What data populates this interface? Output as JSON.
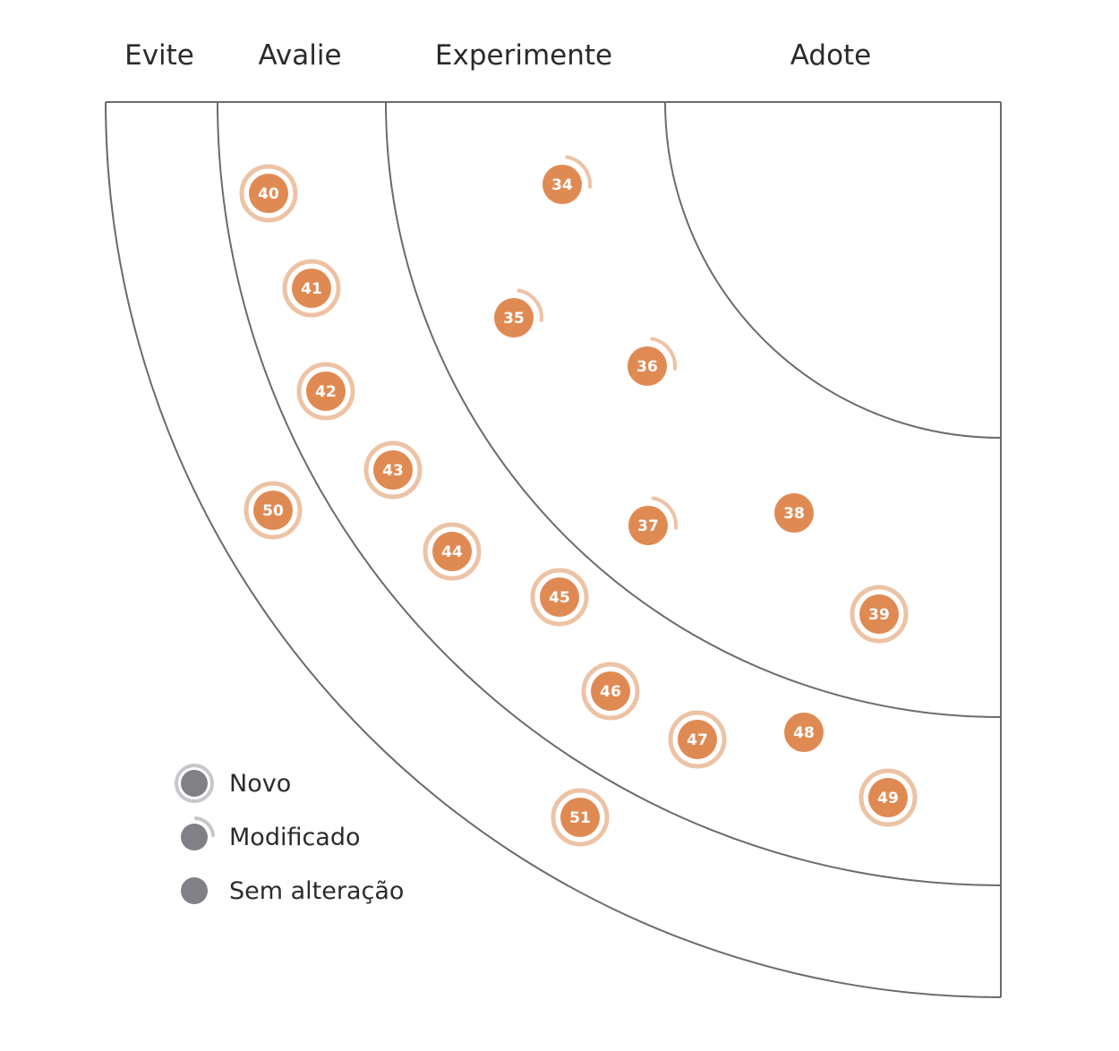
{
  "rings": [
    {
      "id": "evite",
      "label": "Evite"
    },
    {
      "id": "avalie",
      "label": "Avalie"
    },
    {
      "id": "experimente",
      "label": "Experimente"
    },
    {
      "id": "adote",
      "label": "Adote"
    }
  ],
  "colors": {
    "blip": "#e08a53",
    "blip_outline": "#edc3a5",
    "legend_dot": "#808086",
    "legend_outline": "#c7c7cb",
    "ring_line": "#6b6b6b",
    "text": "#2b2b2b"
  },
  "blips": [
    {
      "label": "34",
      "status": "modificado"
    },
    {
      "label": "35",
      "status": "modificado"
    },
    {
      "label": "36",
      "status": "modificado"
    },
    {
      "label": "37",
      "status": "modificado"
    },
    {
      "label": "38",
      "status": "sem-alteracao"
    },
    {
      "label": "39",
      "status": "novo"
    },
    {
      "label": "40",
      "status": "novo"
    },
    {
      "label": "41",
      "status": "novo"
    },
    {
      "label": "42",
      "status": "novo"
    },
    {
      "label": "43",
      "status": "novo"
    },
    {
      "label": "44",
      "status": "novo"
    },
    {
      "label": "45",
      "status": "novo"
    },
    {
      "label": "46",
      "status": "novo"
    },
    {
      "label": "47",
      "status": "novo"
    },
    {
      "label": "48",
      "status": "sem-alteracao"
    },
    {
      "label": "49",
      "status": "novo"
    },
    {
      "label": "50",
      "status": "novo"
    },
    {
      "label": "51",
      "status": "novo"
    }
  ],
  "legend": [
    {
      "status": "novo",
      "label": "Novo"
    },
    {
      "status": "modificado",
      "label": "Modificado"
    },
    {
      "status": "sem-alteracao",
      "label": "Sem alteração"
    }
  ]
}
